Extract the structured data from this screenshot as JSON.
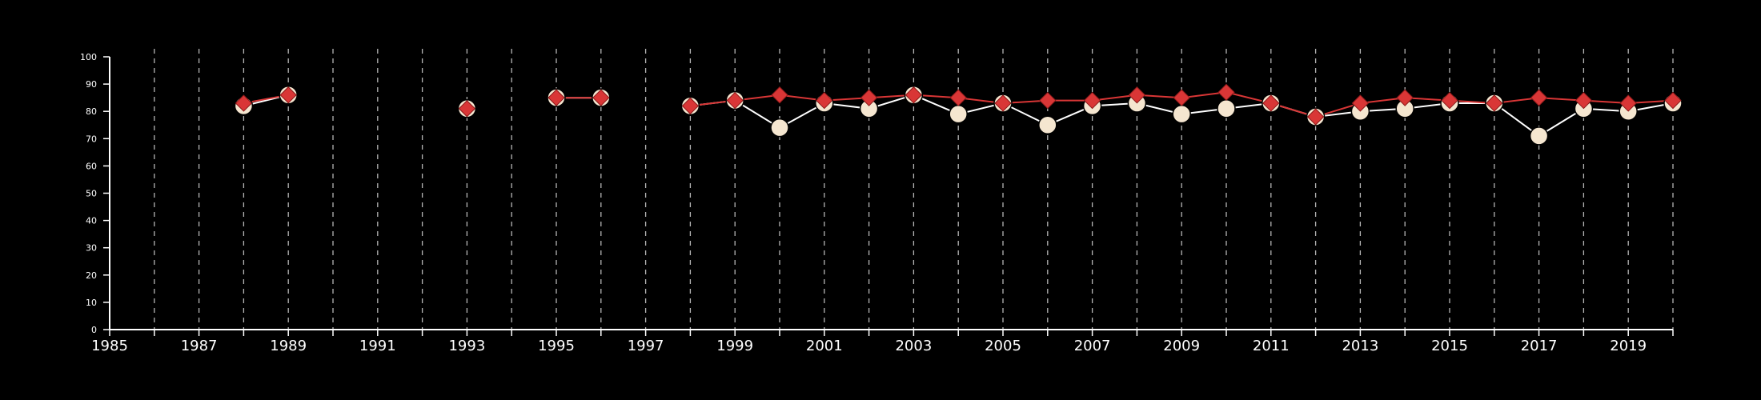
{
  "chart_data": {
    "type": "line",
    "title": "",
    "xlabel": "",
    "ylabel": "",
    "xlim": [
      1985,
      2020
    ],
    "ylim": [
      0,
      100
    ],
    "x_ticks": [
      1985,
      1986,
      1987,
      1988,
      1989,
      1990,
      1991,
      1992,
      1993,
      1994,
      1995,
      1996,
      1997,
      1998,
      1999,
      2000,
      2001,
      2002,
      2003,
      2004,
      2005,
      2006,
      2007,
      2008,
      2009,
      2010,
      2011,
      2012,
      2013,
      2014,
      2015,
      2016,
      2017,
      2018,
      2019,
      2020
    ],
    "x_tick_labels": [
      "1985",
      "1987",
      "1989",
      "1991",
      "1993",
      "1995",
      "1997",
      "1999",
      "2001",
      "2003",
      "2005",
      "2007",
      "2009",
      "2011",
      "2013",
      "2015",
      "2017",
      "2019"
    ],
    "y_tick_labels": [
      "0",
      "10",
      "20",
      "30",
      "40",
      "50",
      "60",
      "70",
      "80",
      "90",
      "100"
    ],
    "vertical_grid": true,
    "legend": "none",
    "series": [
      {
        "marker": "circle",
        "color": "#f5e6d0",
        "line_color": "#ffffff",
        "points": [
          [
            1988,
            82
          ],
          [
            1989,
            86
          ],
          null,
          [
            1993,
            81
          ],
          null,
          [
            1995,
            85
          ],
          [
            1996,
            85
          ],
          null,
          [
            1998,
            82
          ],
          [
            1999,
            84
          ],
          [
            2000,
            74
          ],
          [
            2001,
            83
          ],
          [
            2002,
            81
          ],
          [
            2003,
            86
          ],
          [
            2004,
            79
          ],
          [
            2005,
            83
          ],
          [
            2006,
            75
          ],
          [
            2007,
            82
          ],
          [
            2008,
            83
          ],
          [
            2009,
            79
          ],
          [
            2010,
            81
          ],
          [
            2011,
            83
          ],
          [
            2012,
            78
          ],
          [
            2013,
            80
          ],
          [
            2014,
            81
          ],
          [
            2015,
            83
          ],
          [
            2016,
            83
          ],
          [
            2017,
            71
          ],
          [
            2018,
            81
          ],
          [
            2019,
            80
          ],
          [
            2020,
            83
          ]
        ]
      },
      {
        "marker": "diamond",
        "color": "#d93636",
        "line_color": "#d93636",
        "points": [
          [
            1988,
            83
          ],
          [
            1989,
            86
          ],
          null,
          [
            1993,
            81
          ],
          null,
          [
            1995,
            85
          ],
          [
            1996,
            85
          ],
          null,
          [
            1998,
            82
          ],
          [
            1999,
            84
          ],
          [
            2000,
            86
          ],
          [
            2001,
            84
          ],
          [
            2002,
            85
          ],
          [
            2003,
            86
          ],
          [
            2004,
            85
          ],
          [
            2005,
            83
          ],
          [
            2006,
            84
          ],
          [
            2007,
            84
          ],
          [
            2008,
            86
          ],
          [
            2009,
            85
          ],
          [
            2010,
            87
          ],
          [
            2011,
            83
          ],
          [
            2012,
            78
          ],
          [
            2013,
            83
          ],
          [
            2014,
            85
          ],
          [
            2015,
            84
          ],
          [
            2016,
            83
          ],
          [
            2017,
            85
          ],
          [
            2018,
            84
          ],
          [
            2019,
            83
          ],
          [
            2020,
            84
          ]
        ]
      }
    ]
  }
}
